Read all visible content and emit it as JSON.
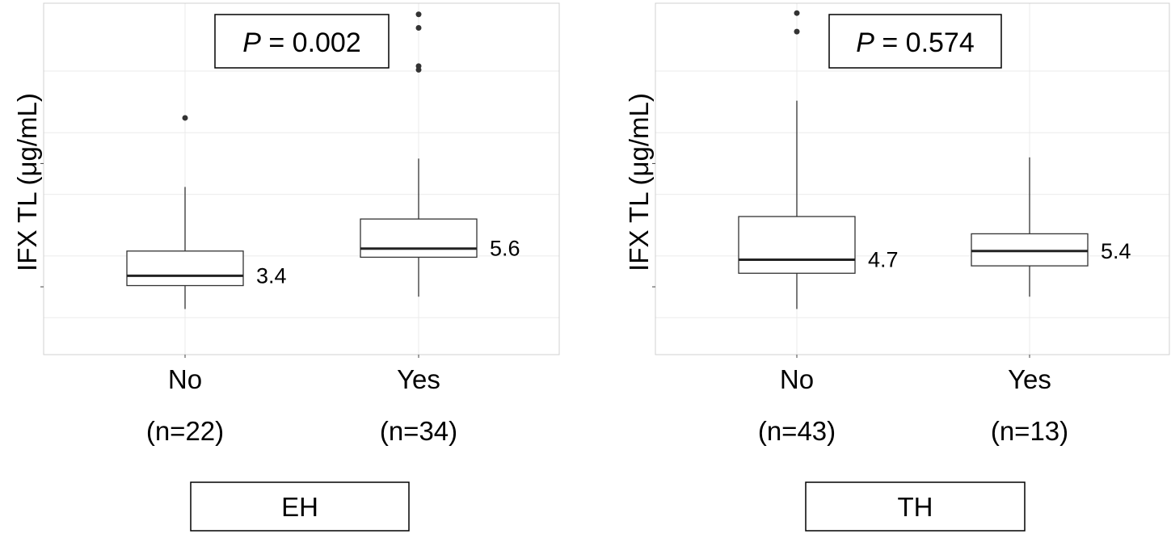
{
  "chart_data": [
    {
      "type": "box",
      "panel_label": "EH",
      "ylabel": "IFX TL (μg/mL)",
      "p_text": {
        "italic": "P",
        "rest": " = 0.002"
      },
      "categories": [
        "No",
        "Yes"
      ],
      "n_labels": [
        "(n=22)",
        "(n=34)"
      ],
      "median_labels": [
        "3.4",
        "5.6"
      ],
      "grid": true,
      "boxes": [
        {
          "category": "No",
          "whisker_low": 0.7,
          "q1": 2.6,
          "median": 3.4,
          "q3": 5.4,
          "whisker_high": 10.6,
          "outliers": [
            16.2
          ]
        },
        {
          "category": "Yes",
          "whisker_low": 1.7,
          "q1": 4.9,
          "median": 5.6,
          "q3": 8.0,
          "whisker_high": 12.9,
          "outliers": [
            20.1,
            20.4,
            23.5,
            24.6
          ]
        }
      ],
      "ylim": [
        -3.0,
        25.5
      ]
    },
    {
      "type": "box",
      "panel_label": "TH",
      "ylabel": "IFX TL (μg/mL)",
      "p_text": {
        "italic": "P",
        "rest": " = 0.574"
      },
      "categories": [
        "No",
        "Yes"
      ],
      "n_labels": [
        "(n=43)",
        "(n=13)"
      ],
      "median_labels": [
        "4.7",
        "5.4"
      ],
      "grid": true,
      "boxes": [
        {
          "category": "No",
          "whisker_low": 0.7,
          "q1": 3.6,
          "median": 4.7,
          "q3": 8.2,
          "whisker_high": 17.6,
          "outliers": [
            23.2,
            24.7
          ]
        },
        {
          "category": "Yes",
          "whisker_low": 1.7,
          "q1": 4.2,
          "median": 5.4,
          "q3": 6.8,
          "whisker_high": 13.0,
          "outliers": []
        }
      ],
      "ylim": [
        -3.0,
        25.5
      ]
    }
  ]
}
